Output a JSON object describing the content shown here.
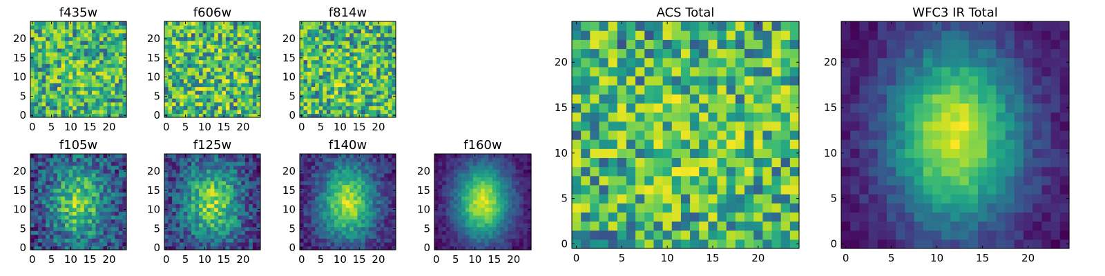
{
  "chart_data": [
    {
      "type": "heatmap",
      "title": "f435w",
      "grid_size": 25,
      "xlim": [
        0,
        25
      ],
      "ylim": [
        0,
        25
      ],
      "xticks": [
        0,
        5,
        10,
        15,
        20
      ],
      "yticks": [
        0,
        5,
        10,
        15,
        20
      ],
      "colormap": "viridis",
      "pattern": "noise",
      "peak": [
        12,
        10
      ],
      "sigma": [
        4,
        4
      ],
      "source_amp": 0.15,
      "noise_amp": 1.0,
      "seed": 11
    },
    {
      "type": "heatmap",
      "title": "f606w",
      "grid_size": 25,
      "xlim": [
        0,
        25
      ],
      "ylim": [
        0,
        25
      ],
      "xticks": [
        0,
        5,
        10,
        15,
        20
      ],
      "yticks": [
        0,
        5,
        10,
        15,
        20
      ],
      "colormap": "viridis",
      "pattern": "noise",
      "peak": [
        12,
        12
      ],
      "sigma": [
        5,
        5
      ],
      "source_amp": 0.05,
      "noise_amp": 1.0,
      "seed": 23
    },
    {
      "type": "heatmap",
      "title": "f814w",
      "grid_size": 25,
      "xlim": [
        0,
        25
      ],
      "ylim": [
        0,
        25
      ],
      "xticks": [
        0,
        5,
        10,
        15,
        20
      ],
      "yticks": [
        0,
        5,
        10,
        15,
        20
      ],
      "colormap": "viridis",
      "pattern": "noise",
      "peak": [
        12,
        8
      ],
      "sigma": [
        4,
        5
      ],
      "source_amp": 0.1,
      "noise_amp": 1.0,
      "seed": 37
    },
    {
      "type": "heatmap",
      "title": "f105w",
      "grid_size": 25,
      "xlim": [
        0,
        25
      ],
      "ylim": [
        0,
        25
      ],
      "xticks": [
        0,
        5,
        10,
        15,
        20
      ],
      "yticks": [
        0,
        5,
        10,
        15,
        20
      ],
      "colormap": "viridis",
      "pattern": "source",
      "peak": [
        12,
        12
      ],
      "sigma": [
        5,
        7
      ],
      "source_amp": 0.55,
      "noise_amp": 0.45,
      "seed": 41
    },
    {
      "type": "heatmap",
      "title": "f125w",
      "grid_size": 25,
      "xlim": [
        0,
        25
      ],
      "ylim": [
        0,
        25
      ],
      "xticks": [
        0,
        5,
        10,
        15,
        20
      ],
      "yticks": [
        0,
        5,
        10,
        15,
        20
      ],
      "colormap": "viridis",
      "pattern": "source",
      "peak": [
        12,
        12
      ],
      "sigma": [
        5,
        7
      ],
      "source_amp": 0.6,
      "noise_amp": 0.4,
      "seed": 53
    },
    {
      "type": "heatmap",
      "title": "f140w",
      "grid_size": 25,
      "xlim": [
        0,
        25
      ],
      "ylim": [
        0,
        25
      ],
      "xticks": [
        0,
        5,
        10,
        15,
        20
      ],
      "yticks": [
        0,
        5,
        10,
        15,
        20
      ],
      "colormap": "viridis",
      "pattern": "source",
      "peak": [
        12,
        12
      ],
      "sigma": [
        5,
        7
      ],
      "source_amp": 0.75,
      "noise_amp": 0.25,
      "seed": 67
    },
    {
      "type": "heatmap",
      "title": "f160w",
      "grid_size": 25,
      "xlim": [
        0,
        25
      ],
      "ylim": [
        0,
        25
      ],
      "xticks": [
        0,
        5,
        10,
        15,
        20
      ],
      "yticks": [
        0,
        5,
        10,
        15,
        20
      ],
      "colormap": "viridis",
      "pattern": "source",
      "peak": [
        12,
        12
      ],
      "sigma": [
        5,
        7
      ],
      "source_amp": 0.85,
      "noise_amp": 0.15,
      "seed": 79
    },
    {
      "type": "heatmap",
      "title": "ACS Total",
      "grid_size": 25,
      "xlim": [
        0,
        25
      ],
      "ylim": [
        0,
        25
      ],
      "xticks": [
        0,
        5,
        10,
        15,
        20
      ],
      "yticks": [
        0,
        5,
        10,
        15,
        20
      ],
      "colormap": "viridis",
      "pattern": "noise",
      "peak": [
        12,
        12
      ],
      "sigma": [
        5,
        5
      ],
      "source_amp": 0.1,
      "noise_amp": 0.9,
      "seed": 97
    },
    {
      "type": "heatmap",
      "title": "WFC3 IR Total",
      "grid_size": 25,
      "xlim": [
        0,
        25
      ],
      "ylim": [
        0,
        25
      ],
      "xticks": [
        0,
        5,
        10,
        15,
        20
      ],
      "yticks": [
        0,
        5,
        10,
        15,
        20
      ],
      "colormap": "viridis",
      "pattern": "source",
      "peak": [
        12,
        12
      ],
      "sigma": [
        5,
        7
      ],
      "source_amp": 0.85,
      "noise_amp": 0.15,
      "seed": 109
    }
  ]
}
